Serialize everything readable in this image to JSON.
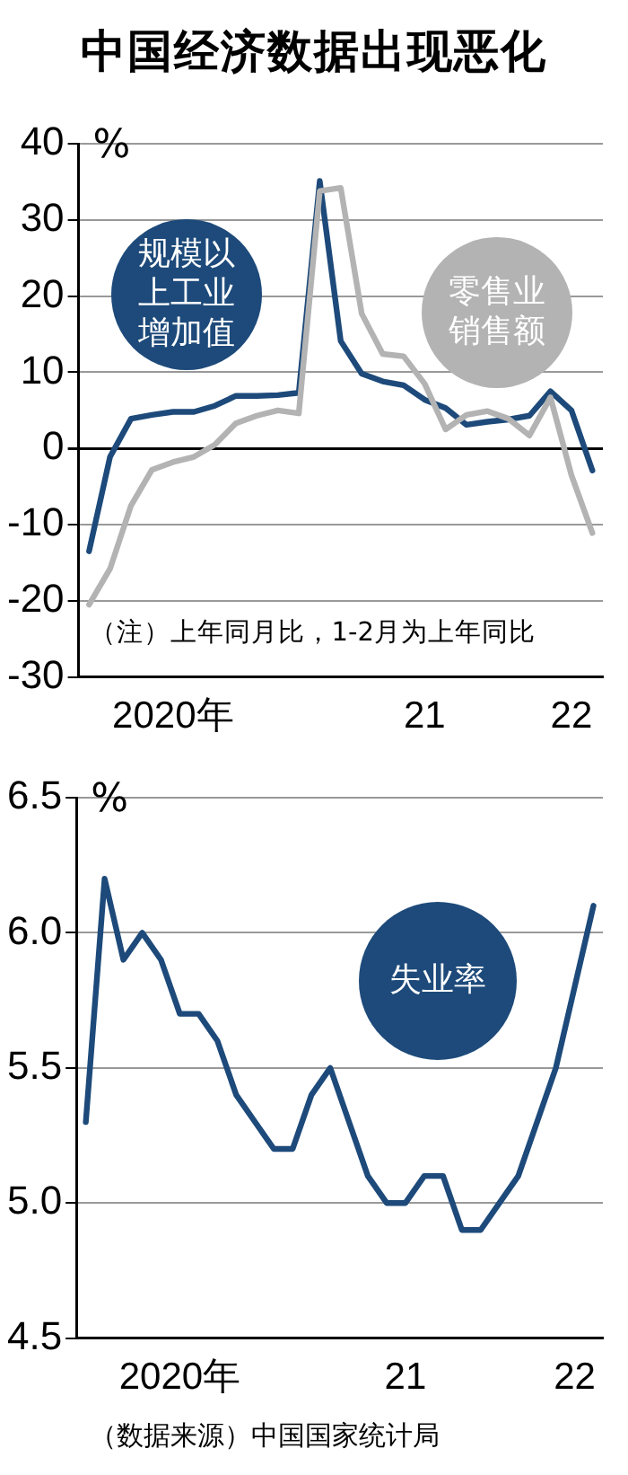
{
  "chart_data": [
    {
      "type": "line",
      "title": "中国经济数据出现恶化",
      "ylabel": "%",
      "categories": [
        null,
        null,
        null,
        null,
        "2020年",
        null,
        null,
        null,
        null,
        null,
        null,
        null,
        null,
        null,
        null,
        null,
        "21",
        null,
        null,
        null,
        null,
        null,
        null,
        "22",
        null
      ],
      "series": [
        {
          "name": "零售业销售额",
          "color": "#b3b3b3",
          "values": [
            -20.5,
            -15.8,
            -7.5,
            -2.8,
            -1.8,
            -1.1,
            0.5,
            3.3,
            4.3,
            5.0,
            4.6,
            33.8,
            34.2,
            17.7,
            12.4,
            12.1,
            8.5,
            2.5,
            4.4,
            4.9,
            3.9,
            1.7,
            6.7,
            -3.5,
            -11.1
          ]
        },
        {
          "name": "规模以上工业增加值",
          "color": "#1d4a7a",
          "values": [
            -13.5,
            -1.1,
            3.9,
            4.4,
            4.8,
            4.8,
            5.6,
            6.9,
            6.9,
            7.0,
            7.3,
            35.1,
            14.1,
            9.8,
            8.8,
            8.3,
            6.4,
            5.3,
            3.1,
            3.5,
            3.8,
            4.3,
            7.5,
            5.0,
            -2.9
          ]
        }
      ],
      "ylim": [
        -30,
        40
      ],
      "yticks": [
        -30,
        -20,
        -10,
        0,
        10,
        20,
        30,
        40
      ],
      "grid": "y",
      "legend": false,
      "marker": "none",
      "annotations": [
        "（注）上年同月比，1-2月为上年同比"
      ]
    },
    {
      "type": "line",
      "ylabel": "%",
      "categories": [
        null,
        null,
        null,
        null,
        null,
        "2020年",
        null,
        null,
        null,
        null,
        null,
        null,
        null,
        null,
        null,
        null,
        null,
        "21",
        null,
        null,
        null,
        null,
        null,
        null,
        null,
        null,
        "22",
        null
      ],
      "series": [
        {
          "name": "失业率",
          "color": "#1d4a7a",
          "values": [
            5.3,
            6.2,
            5.9,
            6.0,
            5.9,
            5.7,
            5.7,
            5.6,
            5.4,
            5.3,
            5.2,
            5.2,
            5.4,
            5.5,
            5.3,
            5.1,
            5.0,
            5.0,
            5.1,
            5.1,
            4.9,
            4.9,
            5.0,
            5.1,
            5.3,
            5.5,
            5.8,
            6.1
          ]
        }
      ],
      "ylim": [
        4.5,
        6.5
      ],
      "yticks": [
        4.5,
        {
          "value": 5,
          "label": "5.0"
        },
        5.5,
        {
          "value": 6,
          "label": "6.0"
        },
        6.5
      ],
      "grid": "y",
      "legend": false,
      "marker": "none",
      "annotations": [
        "（数据来源）中国国家统计局"
      ]
    }
  ]
}
